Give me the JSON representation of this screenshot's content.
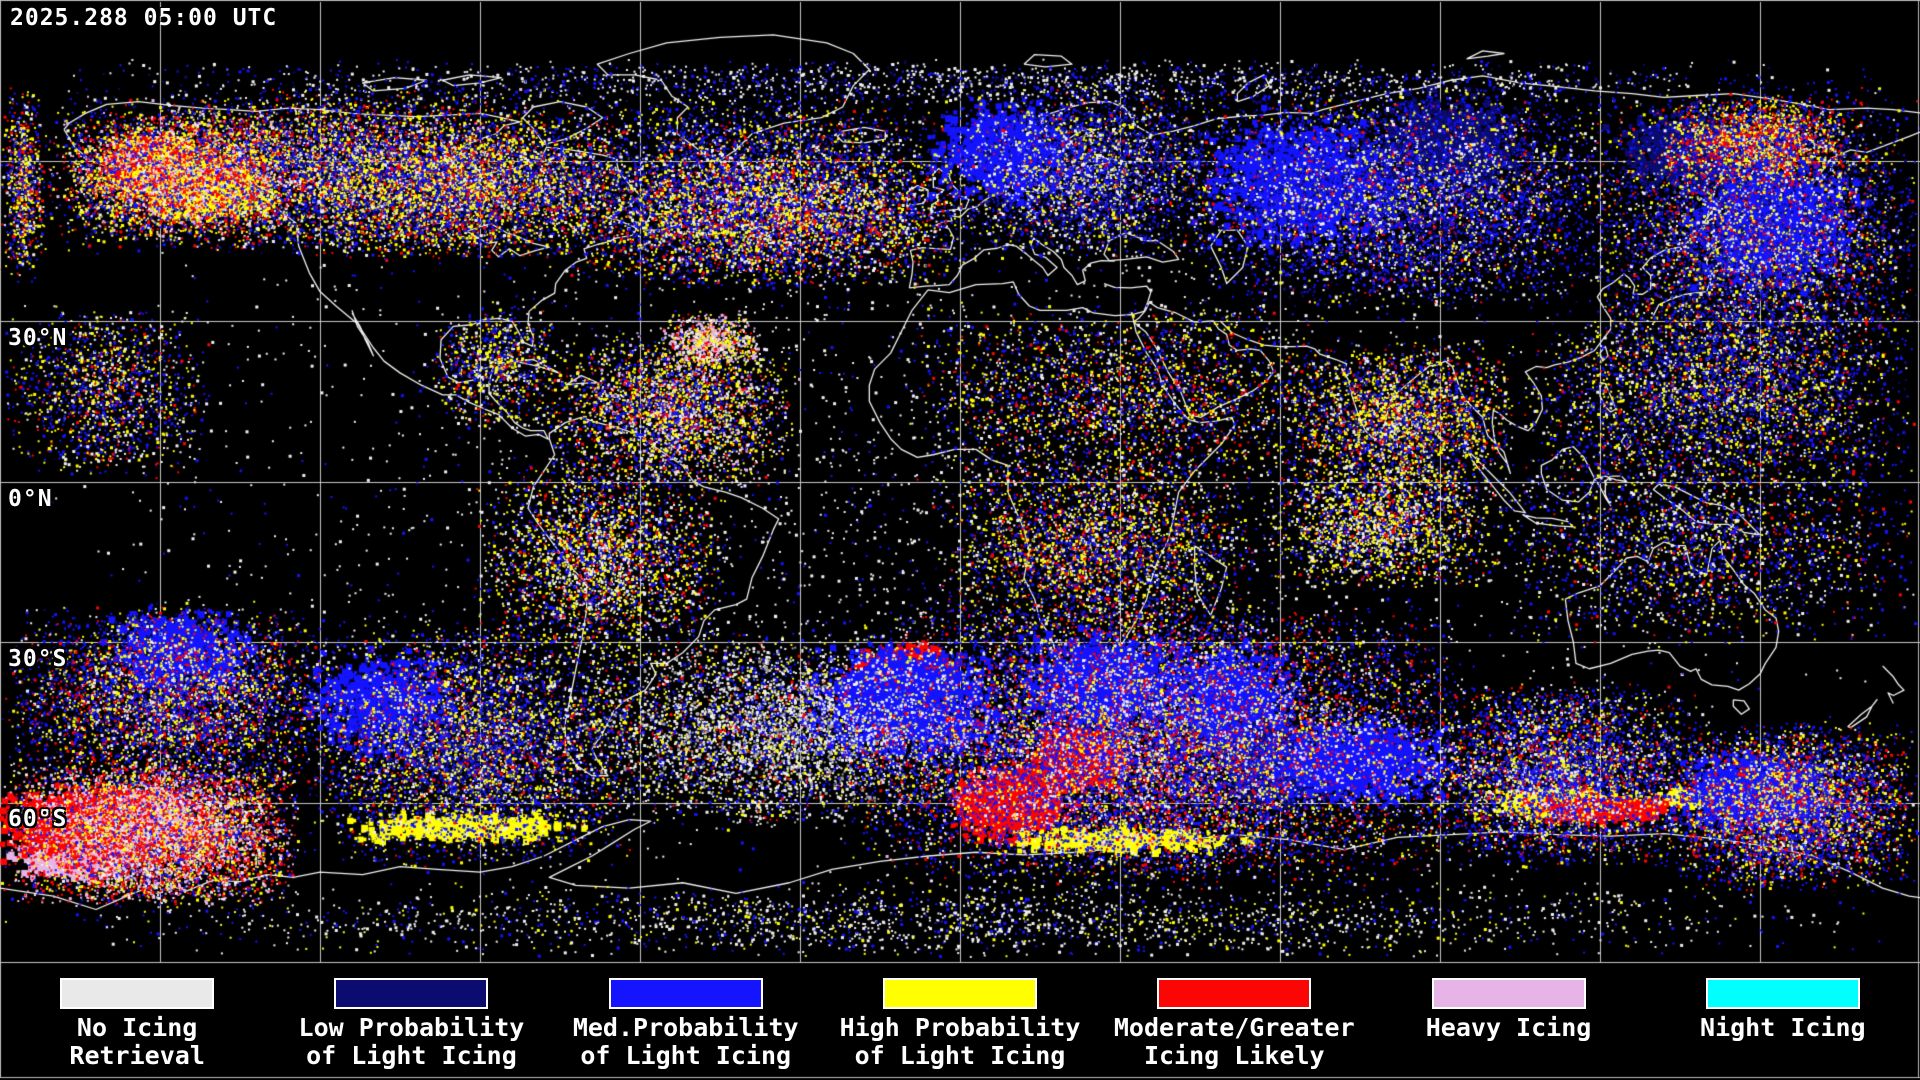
{
  "header": {
    "timestamp": "2025.288 05:00 UTC"
  },
  "map": {
    "latitude_labels": [
      {
        "text": "30°N"
      },
      {
        "text": "0°N"
      },
      {
        "text": "30°S"
      },
      {
        "text": "60°S"
      }
    ]
  },
  "legend": {
    "items": [
      {
        "name": "no-icing-retrieval",
        "line1": "No Icing",
        "line2": "Retrieval",
        "color": "#e9e9e9"
      },
      {
        "name": "low-prob-light-icing",
        "line1": "Low Probability",
        "line2": "of Light Icing",
        "color": "#0b0b70"
      },
      {
        "name": "med-prob-light-icing",
        "line1": "Med.Probability",
        "line2": "of Light Icing",
        "color": "#1414ff"
      },
      {
        "name": "high-prob-light-icing",
        "line1": "High Probability",
        "line2": "of Light Icing",
        "color": "#ffff00"
      },
      {
        "name": "moderate-greater-icing",
        "line1": "Moderate/Greater",
        "line2": "Icing Likely",
        "color": "#fb0505"
      },
      {
        "name": "heavy-icing",
        "line1": "Heavy Icing",
        "line2": "",
        "color": "#e6b4e6"
      },
      {
        "name": "night-icing",
        "line1": "Night Icing",
        "line2": "",
        "color": "#00ffff"
      }
    ]
  },
  "palette": {
    "background": "#000000",
    "coastline": "#f2f2f2",
    "graticule": "#c8c8c8",
    "no_retrieval_speckle": "#f0f0f0",
    "gray_speckle": "#9a9a9a",
    "text": "#ffffff"
  }
}
